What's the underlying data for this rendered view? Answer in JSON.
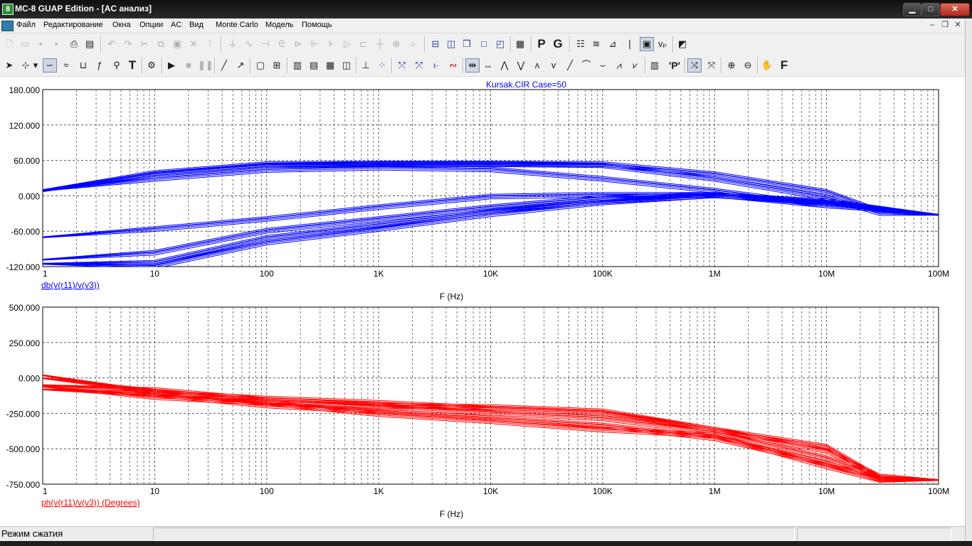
{
  "window": {
    "title": "MC-8 GUAP Edition - [AC анализ]",
    "app_icon_glyph": "8",
    "minimize_glyph": "▁",
    "maximize_glyph": "□",
    "close_glyph": "✕"
  },
  "menu": {
    "items": [
      "Файл",
      "Редактирование",
      "Окна",
      "Опции",
      "AC",
      "Вид",
      "Monte Carlo",
      "Модель",
      "Помощь"
    ],
    "mdi_minimize": "–",
    "mdi_restore": "❐",
    "mdi_close": "✕"
  },
  "toolbar_icons": {
    "toolbar1": [
      "new-file-icon",
      "open-file-icon",
      "save-icon",
      "save-all-icon",
      "print-icon",
      "print-preview-icon",
      "undo-icon",
      "redo-icon",
      "cut-icon",
      "copy-icon",
      "paste-icon",
      "delete-icon",
      "select-all-icon",
      "ground-icon",
      "resistor-icon",
      "capacitor-icon",
      "inductor-icon",
      "diode-icon",
      "battery-icon",
      "npn-icon",
      "opamp-icon",
      "switch-icon",
      "wire-icon",
      "node-icon",
      "source-icon",
      "tile-horizontal-icon",
      "tile-vertical-icon",
      "cascade-icon",
      "maximize-window-icon",
      "split-window-icon",
      "calculator-icon",
      "p-icon",
      "g-icon",
      "table-icon",
      "waveform-icon",
      "stepping-icon",
      "probe-icon",
      "plot-window-icon",
      "vp-icon",
      "zoom-window-icon"
    ],
    "toolbar2": [
      "select-arrow-icon",
      "scale-icon",
      "tab-dropdown-icon",
      "trace-icon",
      "waveform-edit-icon",
      "bracket-icon",
      "function-icon",
      "tag-icon",
      "text-tool-icon",
      "properties-icon",
      "run-icon",
      "stop-icon",
      "pause-icon",
      "line-icon",
      "arrow-icon",
      "rectangle-icon",
      "grid-icon",
      "grid-1-icon",
      "grid-2-icon",
      "grid-3-icon",
      "grid-4-icon",
      "tokens-icon",
      "scatter-icon",
      "peak-left-icon",
      "peak-right-icon",
      "curve-icon",
      "cursor-left-icon",
      "cursor-right-icon",
      "peak-icon",
      "valley-icon",
      "high-icon",
      "low-icon",
      "slope-icon",
      "inflection-icon",
      "valley2-icon",
      "multi-peak-icon",
      "multi-valley-icon",
      "numeric-icon",
      "point-tag-icon",
      "scope-x-icon",
      "scope-y-icon",
      "zoom-in-icon",
      "zoom-out-icon",
      "pan-icon",
      "font-icon"
    ],
    "letters": {
      "p": "P",
      "g": "G",
      "vp": "vₚ",
      "text_tool": "T",
      "font": "F",
      "point_tag": "'P'"
    }
  },
  "plots": {
    "top": {
      "header": "Kursak.CIR Case=50",
      "y_ticks": [
        "180.000",
        "120.000",
        "60.000",
        "0.000",
        "-60.000",
        "-120.000"
      ],
      "x_ticks": [
        "1",
        "10",
        "100",
        "1K",
        "10K",
        "100K",
        "1M",
        "10M",
        "100M"
      ],
      "trace_label": "db(v(r11)/v(v3))",
      "x_label": "F (Hz)",
      "color": "#0000ff"
    },
    "bottom": {
      "y_ticks": [
        "500.000",
        "250.000",
        "0.000",
        "-250.000",
        "-500.000",
        "-750.000"
      ],
      "x_ticks": [
        "1",
        "10",
        "100",
        "1K",
        "10K",
        "100K",
        "1M",
        "10M",
        "100M"
      ],
      "trace_label": "ph(v(r11)/v(v3)) (Degrees)",
      "x_label": "F (Hz)",
      "color": "#ff0000"
    }
  },
  "chart_data": [
    {
      "type": "line",
      "title": "Kursak.CIR Case=50",
      "xlabel": "F (Hz)",
      "ylabel": "db(v(r11)/v(v3))",
      "xscale": "log",
      "xlim": [
        1,
        100000000
      ],
      "ylim": [
        -120,
        180
      ],
      "grid": true,
      "color": "#0000ff",
      "series": [
        {
          "x": [
            1,
            10,
            100,
            1000,
            10000,
            100000,
            1000000,
            10000000,
            30000000,
            100000000
          ],
          "y": [
            8,
            38,
            53,
            55,
            55,
            53,
            30,
            -2,
            -28,
            -32
          ]
        },
        {
          "x": [
            1,
            10,
            100,
            1000,
            10000,
            100000,
            1000000,
            10000000,
            30000000,
            100000000
          ],
          "y": [
            10,
            40,
            55,
            56,
            56,
            55,
            38,
            8,
            -25,
            -32
          ]
        },
        {
          "x": [
            1,
            10,
            100,
            1000,
            10000,
            100000,
            1000000,
            10000000,
            100000000
          ],
          "y": [
            9,
            30,
            45,
            49,
            46,
            30,
            10,
            -15,
            -32
          ]
        },
        {
          "x": [
            1,
            10,
            100,
            1000,
            10000,
            100000,
            1000000,
            10000000,
            100000000
          ],
          "y": [
            -70,
            -55,
            -38,
            -18,
            0,
            3,
            3,
            -15,
            -32
          ]
        },
        {
          "x": [
            1,
            10,
            100,
            1000,
            10000,
            100000,
            1000000,
            10000000,
            100000000
          ],
          "y": [
            -108,
            -95,
            -58,
            -38,
            -18,
            -2,
            3,
            -12,
            -32
          ]
        },
        {
          "x": [
            1,
            10,
            100,
            1000,
            10000,
            100000,
            1000000,
            10000000,
            100000000
          ],
          "y": [
            -115,
            -112,
            -70,
            -48,
            -25,
            -8,
            2,
            -10,
            -32
          ]
        },
        {
          "x": [
            1,
            10,
            100,
            1000,
            10000,
            100000,
            1000000,
            10000000,
            100000000
          ],
          "y": [
            -115,
            -118,
            -78,
            -55,
            -30,
            -10,
            2,
            -8,
            -32
          ]
        }
      ]
    },
    {
      "type": "line",
      "xlabel": "F (Hz)",
      "ylabel": "ph(v(r11)/v(v3)) (Degrees)",
      "xscale": "log",
      "xlim": [
        1,
        100000000
      ],
      "ylim": [
        -750,
        500
      ],
      "grid": true,
      "color": "#ff0000",
      "series": [
        {
          "x": [
            1,
            10,
            100,
            1000,
            10000,
            100000,
            1000000,
            10000000,
            30000000,
            100000000
          ],
          "y": [
            20,
            -100,
            -140,
            -170,
            -210,
            -240,
            -360,
            -480,
            -700,
            -720
          ]
        },
        {
          "x": [
            1,
            10,
            100,
            1000,
            10000,
            100000,
            1000000,
            10000000,
            30000000,
            100000000
          ],
          "y": [
            -50,
            -80,
            -150,
            -190,
            -200,
            -230,
            -360,
            -510,
            -690,
            -720
          ]
        },
        {
          "x": [
            1,
            10,
            100,
            1000,
            10000,
            100000,
            1000000,
            10000000,
            30000000,
            100000000
          ],
          "y": [
            -80,
            -110,
            -190,
            -230,
            -280,
            -330,
            -420,
            -600,
            -710,
            -720
          ]
        },
        {
          "x": [
            1,
            10,
            100,
            1000,
            10000,
            100000,
            1000000,
            10000000,
            30000000,
            100000000
          ],
          "y": [
            -60,
            -130,
            -170,
            -250,
            -300,
            -360,
            -400,
            -620,
            -715,
            -720
          ]
        },
        {
          "x": [
            1,
            10,
            100,
            1000,
            10000,
            100000,
            1000000,
            10000000,
            30000000,
            100000000
          ],
          "y": [
            0,
            -90,
            -160,
            -200,
            -240,
            -280,
            -380,
            -560,
            -700,
            -720
          ]
        }
      ]
    }
  ],
  "status": {
    "text": "Режим сжатия"
  }
}
